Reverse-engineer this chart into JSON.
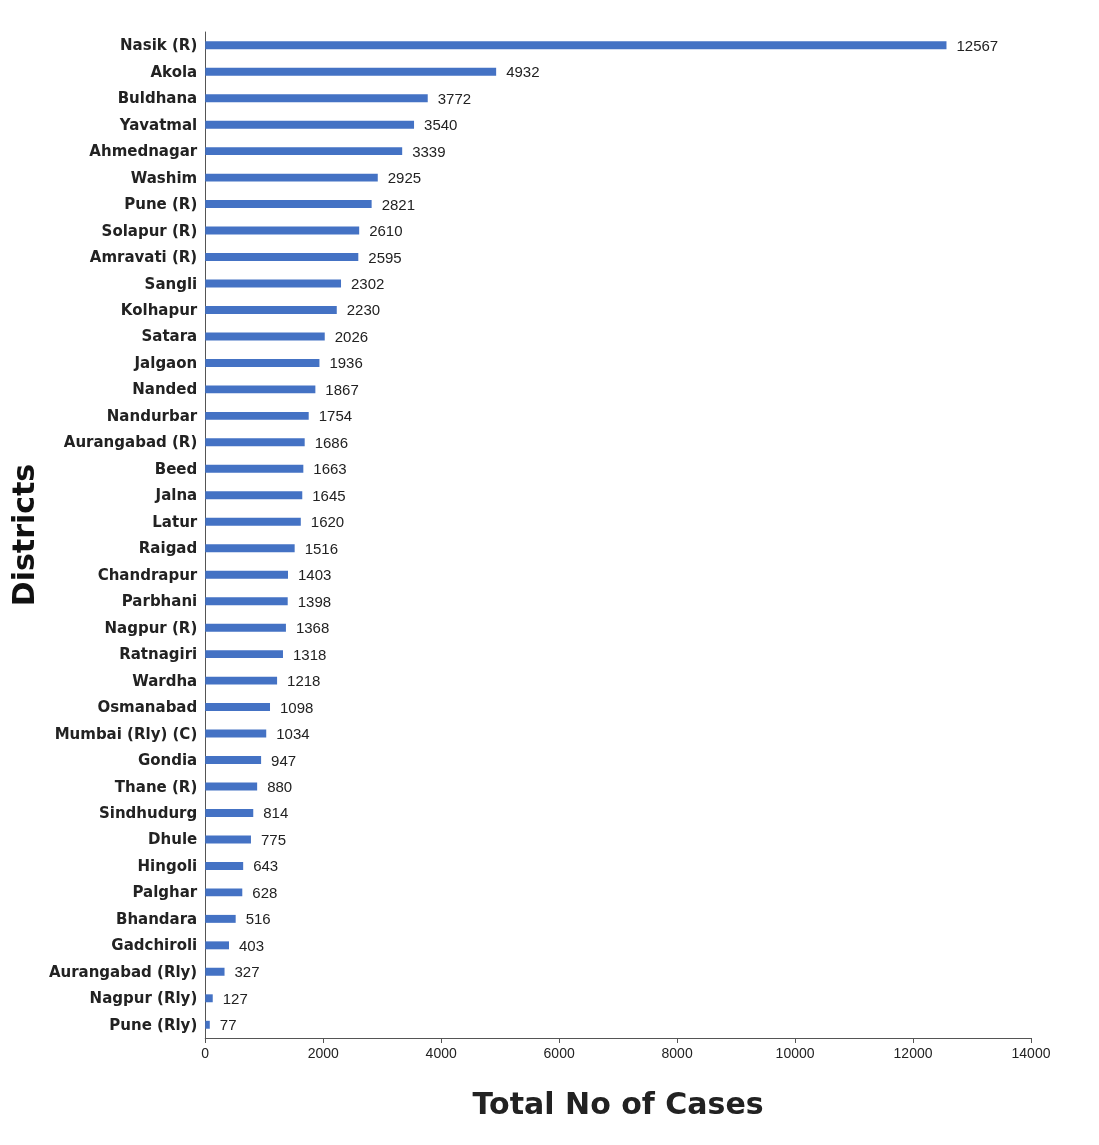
{
  "chart_data": {
    "type": "bar",
    "orientation": "horizontal",
    "xlabel": "Total No of Cases",
    "ylabel": "Districts",
    "categories": [
      "Nasik (R)",
      "Akola",
      "Buldhana",
      "Yavatmal",
      "Ahmednagar",
      "Washim",
      "Pune (R)",
      "Solapur (R)",
      "Amravati (R)",
      "Sangli",
      "Kolhapur",
      "Satara",
      "Jalgaon",
      "Nanded",
      "Nandurbar",
      "Aurangabad (R)",
      "Beed",
      "Jalna",
      "Latur",
      "Raigad",
      "Chandrapur",
      "Parbhani",
      "Nagpur (R)",
      "Ratnagiri",
      "Wardha",
      "Osmanabad",
      "Mumbai (Rly) (C)",
      "Gondia",
      "Thane (R)",
      "Sindhudurg",
      "Dhule",
      "Hingoli",
      "Palghar",
      "Bhandara",
      "Gadchiroli",
      "Aurangabad (Rly)",
      "Nagpur (Rly)",
      "Pune (Rly)"
    ],
    "values": [
      12567,
      4932,
      3772,
      3540,
      3339,
      2925,
      2821,
      2610,
      2595,
      2302,
      2230,
      2026,
      1936,
      1867,
      1754,
      1686,
      1663,
      1645,
      1620,
      1516,
      1403,
      1398,
      1368,
      1318,
      1218,
      1098,
      1034,
      947,
      880,
      814,
      775,
      643,
      628,
      516,
      403,
      327,
      127,
      77
    ],
    "color": "#4472c4",
    "xlim": [
      0,
      14000
    ],
    "xticks": [
      0,
      2000,
      4000,
      6000,
      8000,
      10000,
      12000,
      14000
    ],
    "grid": false,
    "data_labels": true
  }
}
